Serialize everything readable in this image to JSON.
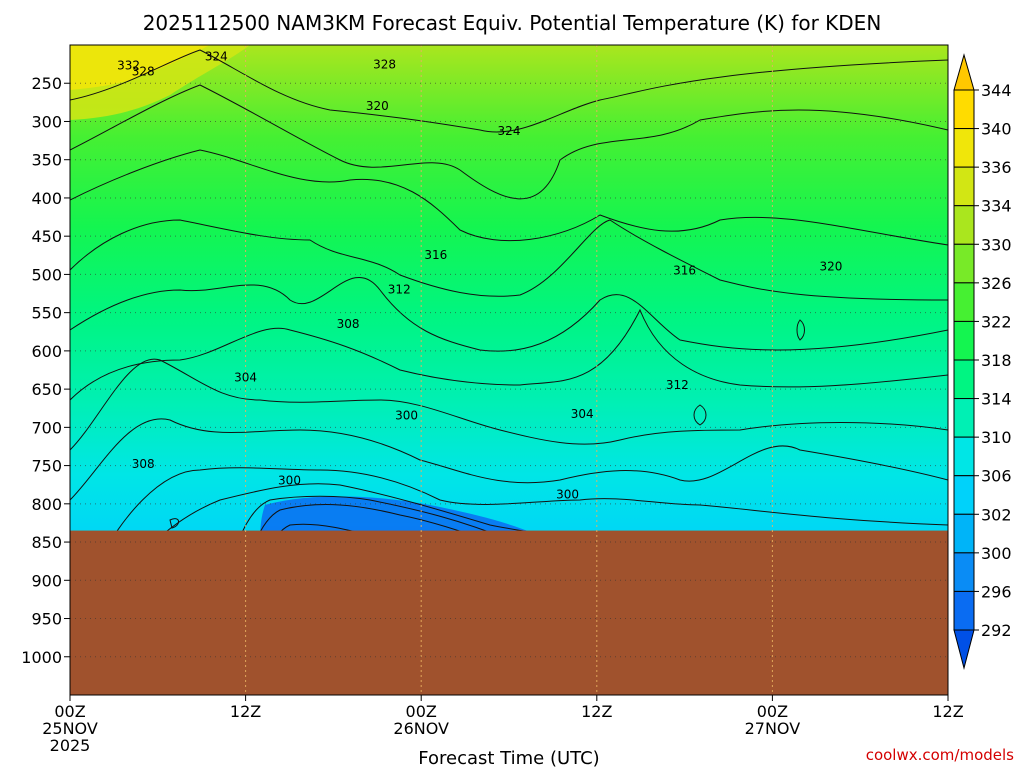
{
  "chart_data": {
    "type": "contour",
    "title": "2025112500 NAM3KM Forecast Equiv. Potential Temperature (K) for KDEN",
    "xlabel": "Forecast Time (UTC)",
    "ylabel": "",
    "x_range_hours": [
      0,
      60
    ],
    "y_range_hpa": [
      200,
      1050
    ],
    "x_ticks": [
      {
        "hour": 0,
        "lines": [
          "00Z",
          "25NOV",
          "2025"
        ]
      },
      {
        "hour": 12,
        "lines": [
          "12Z"
        ]
      },
      {
        "hour": 24,
        "lines": [
          "00Z",
          "26NOV"
        ]
      },
      {
        "hour": 36,
        "lines": [
          "12Z"
        ]
      },
      {
        "hour": 48,
        "lines": [
          "00Z",
          "27NOV"
        ]
      },
      {
        "hour": 60,
        "lines": [
          "12Z"
        ]
      }
    ],
    "y_ticks": [
      250,
      300,
      350,
      400,
      450,
      500,
      550,
      600,
      650,
      700,
      750,
      800,
      850,
      900,
      950,
      1000
    ],
    "colorbar": {
      "levels": [
        292,
        296,
        300,
        302,
        306,
        310,
        314,
        318,
        322,
        326,
        330,
        334,
        336,
        340,
        344
      ],
      "colors": [
        "#0050e6",
        "#0a6cf2",
        "#0a8cf5",
        "#00b4f8",
        "#00d2fa",
        "#00e6e6",
        "#00f0b4",
        "#00f582",
        "#14f550",
        "#46f032",
        "#78ea28",
        "#aae61e",
        "#d2e614",
        "#f0e60a",
        "#ffdc00",
        "#ffc800"
      ]
    },
    "ground_surface_hpa": 835,
    "ground_color": "#a0522d",
    "contour_labels": [
      {
        "text": "324",
        "hour": 10,
        "hpa": 220
      },
      {
        "text": "332",
        "hour": 4,
        "hpa": 232
      },
      {
        "text": "328",
        "hour": 5,
        "hpa": 240
      },
      {
        "text": "328",
        "hour": 21.5,
        "hpa": 231
      },
      {
        "text": "320",
        "hour": 21,
        "hpa": 285
      },
      {
        "text": "324",
        "hour": 30,
        "hpa": 318
      },
      {
        "text": "316",
        "hour": 25,
        "hpa": 480
      },
      {
        "text": "316",
        "hour": 42,
        "hpa": 500
      },
      {
        "text": "320",
        "hour": 52,
        "hpa": 495
      },
      {
        "text": "312",
        "hour": 22.5,
        "hpa": 525
      },
      {
        "text": "308",
        "hour": 19,
        "hpa": 570
      },
      {
        "text": "304",
        "hour": 12,
        "hpa": 640
      },
      {
        "text": "300",
        "hour": 23,
        "hpa": 690
      },
      {
        "text": "304",
        "hour": 35,
        "hpa": 688
      },
      {
        "text": "312",
        "hour": 41.5,
        "hpa": 650
      },
      {
        "text": "308",
        "hour": 5,
        "hpa": 753
      },
      {
        "text": "300",
        "hour": 15,
        "hpa": 775
      },
      {
        "text": "300",
        "hour": 34,
        "hpa": 793
      }
    ]
  },
  "watermark": "coolwx.com/models"
}
